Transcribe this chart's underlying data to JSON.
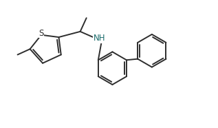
{
  "bg_color": "#ffffff",
  "line_color": "#2d2d2d",
  "S_color": "#2d2d2d",
  "N_color": "#1a6b6b",
  "bond_width": 1.4,
  "font_size": 8.5,
  "fig_width": 3.17,
  "fig_height": 1.86,
  "dpi": 100
}
